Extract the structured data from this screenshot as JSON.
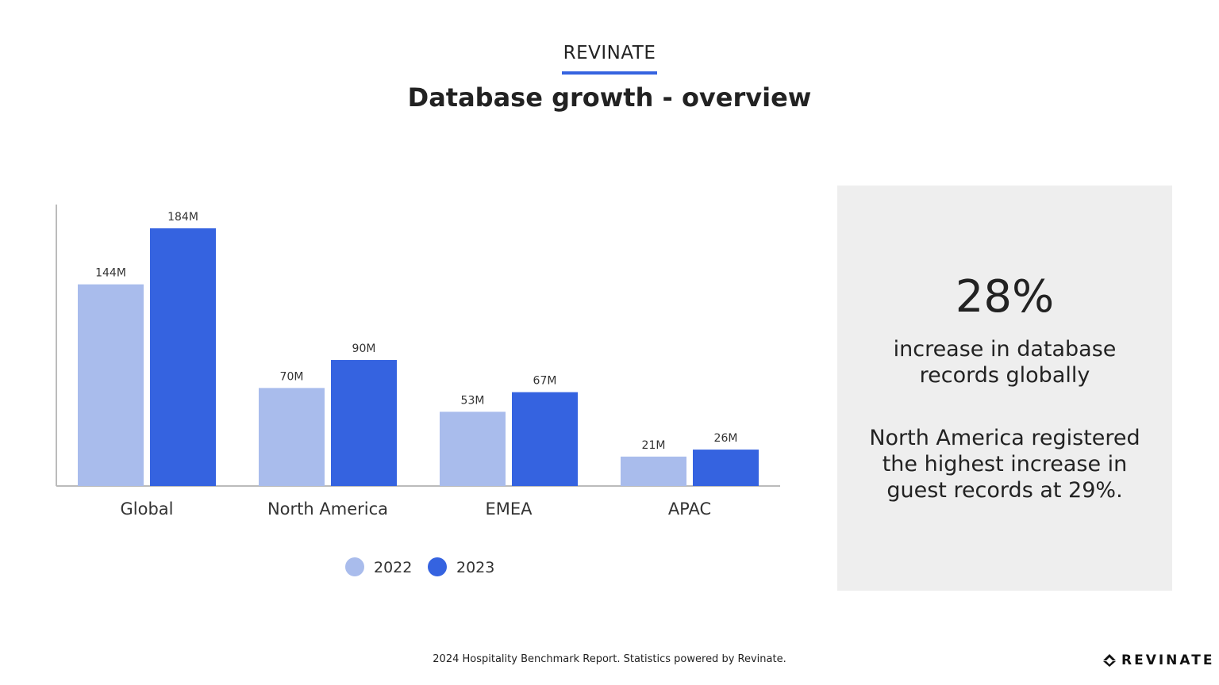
{
  "header": {
    "brand": "REVINATE",
    "title": "Database growth - overview"
  },
  "colors": {
    "accent": "#3563e0",
    "series_2022": "#a9bcec",
    "series_2023": "#3563e0",
    "panel": "#eeeeee"
  },
  "chart_data": {
    "type": "bar",
    "categories": [
      "Global",
      "North America",
      "EMEA",
      "APAC"
    ],
    "series": [
      {
        "name": "2022",
        "values": [
          144,
          70,
          53,
          21
        ],
        "labels": [
          "144M",
          "70M",
          "53M",
          "21M"
        ],
        "color": "#a9bcec"
      },
      {
        "name": "2023",
        "values": [
          184,
          90,
          67,
          26
        ],
        "labels": [
          "184M",
          "90M",
          "67M",
          "26M"
        ],
        "color": "#3563e0"
      }
    ],
    "unit": "M",
    "ylim": [
      0,
      200
    ],
    "grid": false,
    "legend": "bottom"
  },
  "panel": {
    "stat": "28%",
    "stat_label": "increase in database records globally",
    "note": "North America registered the highest increase in guest records at 29%."
  },
  "footer": {
    "text": "2024 Hospitality Benchmark Report. Statistics powered by Revinate.",
    "logo": "REVINATE"
  }
}
